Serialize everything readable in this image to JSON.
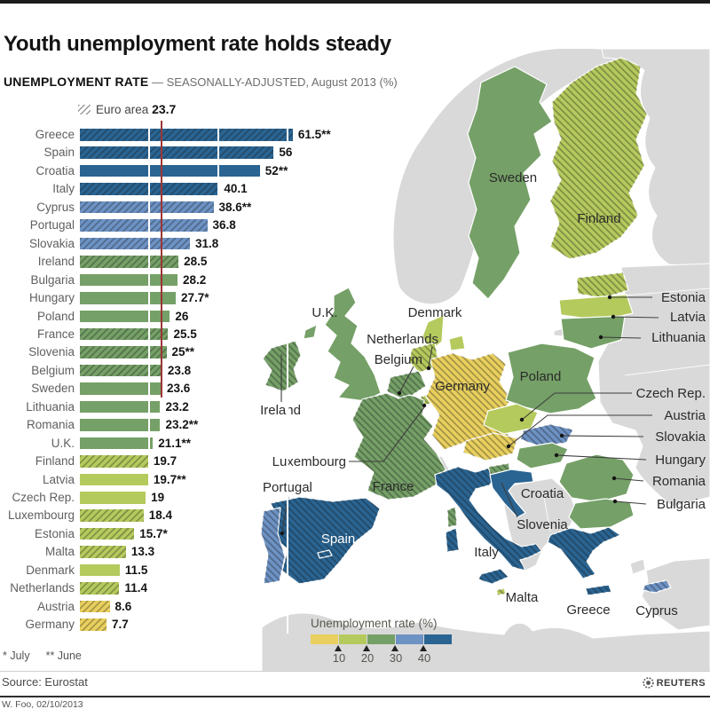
{
  "header": {
    "title": "Youth unemployment rate holds steady",
    "subtitle_bold": "UNEMPLOYMENT RATE",
    "subtitle_rest": " — SEASONALLY-ADJUSTED, August 2013 (%)"
  },
  "euro_area": {
    "label": "Euro area",
    "value": "23.7",
    "value_num": 23.7
  },
  "chart_data": {
    "type": "bar",
    "title": "UNEMPLOYMENT RATE — SEASONALLY-ADJUSTED, August 2013 (%)",
    "unit": "%",
    "xlim": [
      0,
      64
    ],
    "gridlines": [
      20,
      40,
      60
    ],
    "reference_line": {
      "label": "Euro area",
      "value": 23.7
    },
    "hatch_meaning": "euro-area member (hatched)",
    "rows": [
      {
        "country": "Greece",
        "label": "61.5**",
        "value": 61.5,
        "euro_area_hatch": true
      },
      {
        "country": "Spain",
        "label": "56",
        "value": 56,
        "euro_area_hatch": true
      },
      {
        "country": "Croatia",
        "label": "52**",
        "value": 52,
        "euro_area_hatch": false
      },
      {
        "country": "Italy",
        "label": "40.1",
        "value": 40.1,
        "euro_area_hatch": true
      },
      {
        "country": "Cyprus",
        "label": "38.6**",
        "value": 38.6,
        "euro_area_hatch": true
      },
      {
        "country": "Portugal",
        "label": "36.8",
        "value": 36.8,
        "euro_area_hatch": true
      },
      {
        "country": "Slovakia",
        "label": "31.8",
        "value": 31.8,
        "euro_area_hatch": true
      },
      {
        "country": "Ireland",
        "label": "28.5",
        "value": 28.5,
        "euro_area_hatch": true
      },
      {
        "country": "Bulgaria",
        "label": "28.2",
        "value": 28.2,
        "euro_area_hatch": false
      },
      {
        "country": "Hungary",
        "label": "27.7*",
        "value": 27.7,
        "euro_area_hatch": false
      },
      {
        "country": "Poland",
        "label": "26",
        "value": 26,
        "euro_area_hatch": false
      },
      {
        "country": "France",
        "label": "25.5",
        "value": 25.5,
        "euro_area_hatch": true
      },
      {
        "country": "Slovenia",
        "label": "25**",
        "value": 25,
        "euro_area_hatch": true
      },
      {
        "country": "Belgium",
        "label": "23.8",
        "value": 23.8,
        "euro_area_hatch": true
      },
      {
        "country": "Sweden",
        "label": "23.6",
        "value": 23.6,
        "euro_area_hatch": false
      },
      {
        "country": "Lithuania",
        "label": "23.2",
        "value": 23.2,
        "euro_area_hatch": false
      },
      {
        "country": "Romania",
        "label": "23.2**",
        "value": 23.2,
        "euro_area_hatch": false
      },
      {
        "country": "U.K.",
        "label": "21.1**",
        "value": 21.1,
        "euro_area_hatch": false
      },
      {
        "country": "Finland",
        "label": "19.7",
        "value": 19.7,
        "euro_area_hatch": true
      },
      {
        "country": "Latvia",
        "label": "19.7**",
        "value": 19.7,
        "euro_area_hatch": false
      },
      {
        "country": "Czech Rep.",
        "label": "19",
        "value": 19,
        "euro_area_hatch": false
      },
      {
        "country": "Luxembourg",
        "label": "18.4",
        "value": 18.4,
        "euro_area_hatch": true
      },
      {
        "country": "Estonia",
        "label": "15.7*",
        "value": 15.7,
        "euro_area_hatch": true
      },
      {
        "country": "Malta",
        "label": "13.3",
        "value": 13.3,
        "euro_area_hatch": true
      },
      {
        "country": "Denmark",
        "label": "11.5",
        "value": 11.5,
        "euro_area_hatch": false
      },
      {
        "country": "Netherlands",
        "label": "11.4",
        "value": 11.4,
        "euro_area_hatch": true
      },
      {
        "country": "Austria",
        "label": "8.6",
        "value": 8.6,
        "euro_area_hatch": true
      },
      {
        "country": "Germany",
        "label": "7.7",
        "value": 7.7,
        "euro_area_hatch": true
      }
    ]
  },
  "color_scale": {
    "thresholds": [
      10,
      20,
      30,
      40
    ],
    "colors": [
      "#e9d05e",
      "#b5ca5d",
      "#75a067",
      "#6d92c4",
      "#2a6492"
    ],
    "non_eu_gray": "#d9d9d9",
    "reference_red": "#9c3636"
  },
  "legend": {
    "title": "Unemployment rate (%)",
    "ticks": [
      "10",
      "20",
      "30",
      "40"
    ]
  },
  "map": {
    "labels": {
      "sweden": "Sweden",
      "finland": "Finland",
      "estonia": "Estonia",
      "latvia": "Latvia",
      "lithuania": "Lithuania",
      "denmark": "Denmark",
      "uk": "U.K.",
      "ireland": "Ireland",
      "netherlands": "Netherlands",
      "belgium": "Belgium",
      "luxembourg": "Luxembourg",
      "germany": "Germany",
      "poland": "Poland",
      "czech": "Czech Rep.",
      "austria": "Austria",
      "slovakia": "Slovakia",
      "hungary": "Hungary",
      "romania": "Romania",
      "bulgaria": "Bulgaria",
      "france": "France",
      "portugal": "Portugal",
      "spain": "Spain",
      "italy": "Italy",
      "slovenia": "Slovenia",
      "croatia": "Croatia",
      "greece": "Greece",
      "malta": "Malta",
      "cyprus": "Cyprus"
    }
  },
  "footnotes": {
    "july": "* July",
    "june": "** June"
  },
  "source": "Source: Eurostat",
  "credit": "W. Foo, 02/10/2013",
  "reuters": "REUTERS"
}
